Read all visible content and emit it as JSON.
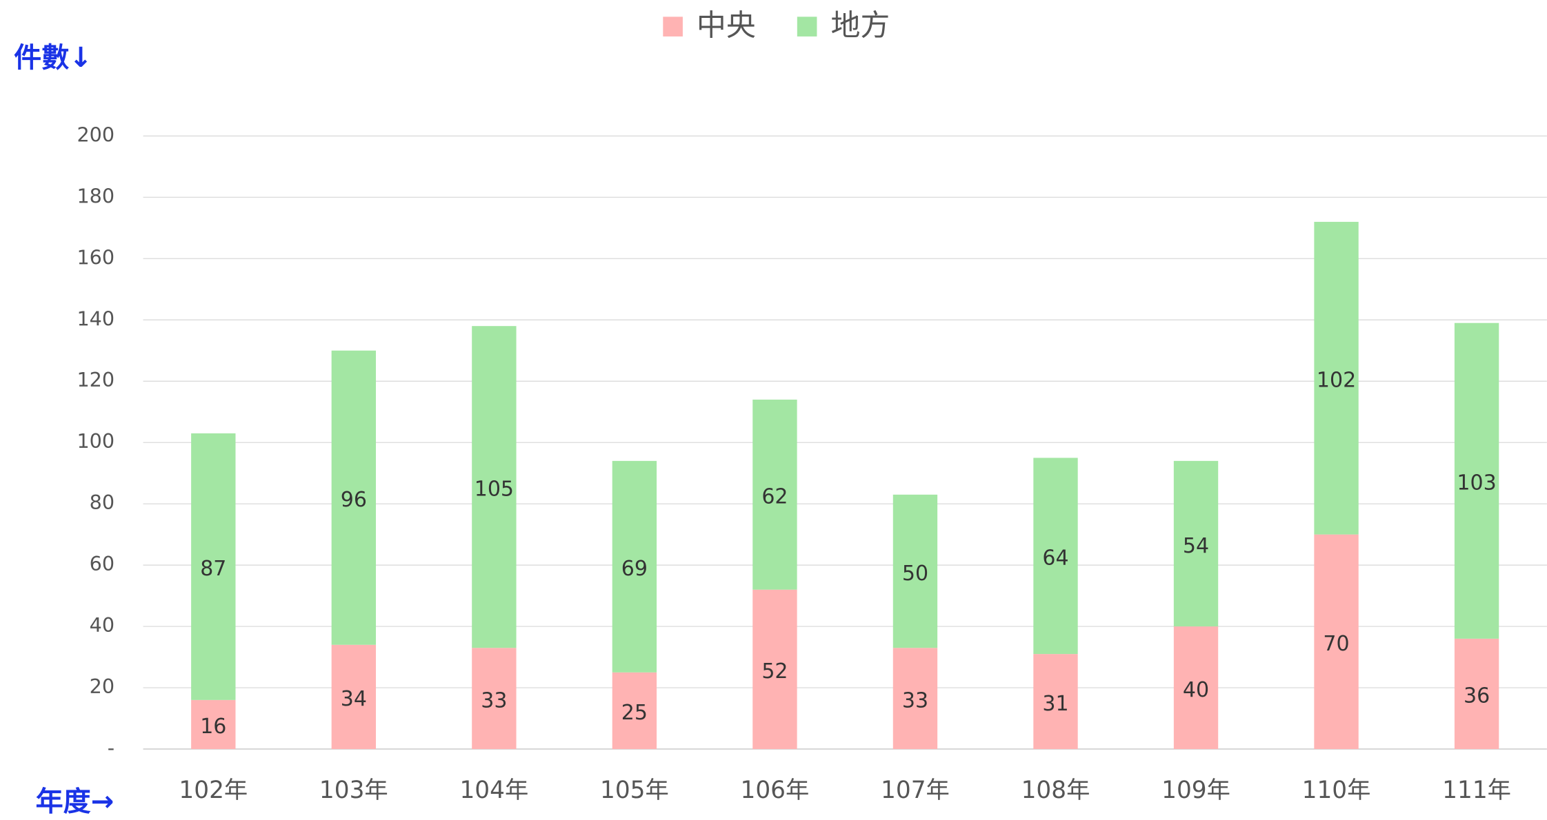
{
  "chart_data": {
    "type": "stacked_bar",
    "y_label": "件數↓",
    "x_label": "年度→",
    "categories": [
      "102年",
      "103年",
      "104年",
      "105年",
      "106年",
      "107年",
      "108年",
      "109年",
      "110年",
      "111年"
    ],
    "series": [
      {
        "name": "中央",
        "color": "#ffb3b3",
        "values": [
          16,
          34,
          33,
          25,
          52,
          33,
          31,
          40,
          70,
          36
        ]
      },
      {
        "name": "地方",
        "color": "#a3e6a3",
        "values": [
          87,
          96,
          105,
          69,
          62,
          50,
          64,
          54,
          102,
          103
        ]
      }
    ],
    "ylim": [
      0,
      200
    ],
    "yticks": [
      {
        "value": 0,
        "label": "-"
      },
      20,
      40,
      60,
      80,
      100,
      120,
      140,
      160,
      180,
      200
    ],
    "grid": true,
    "legend": "top"
  }
}
